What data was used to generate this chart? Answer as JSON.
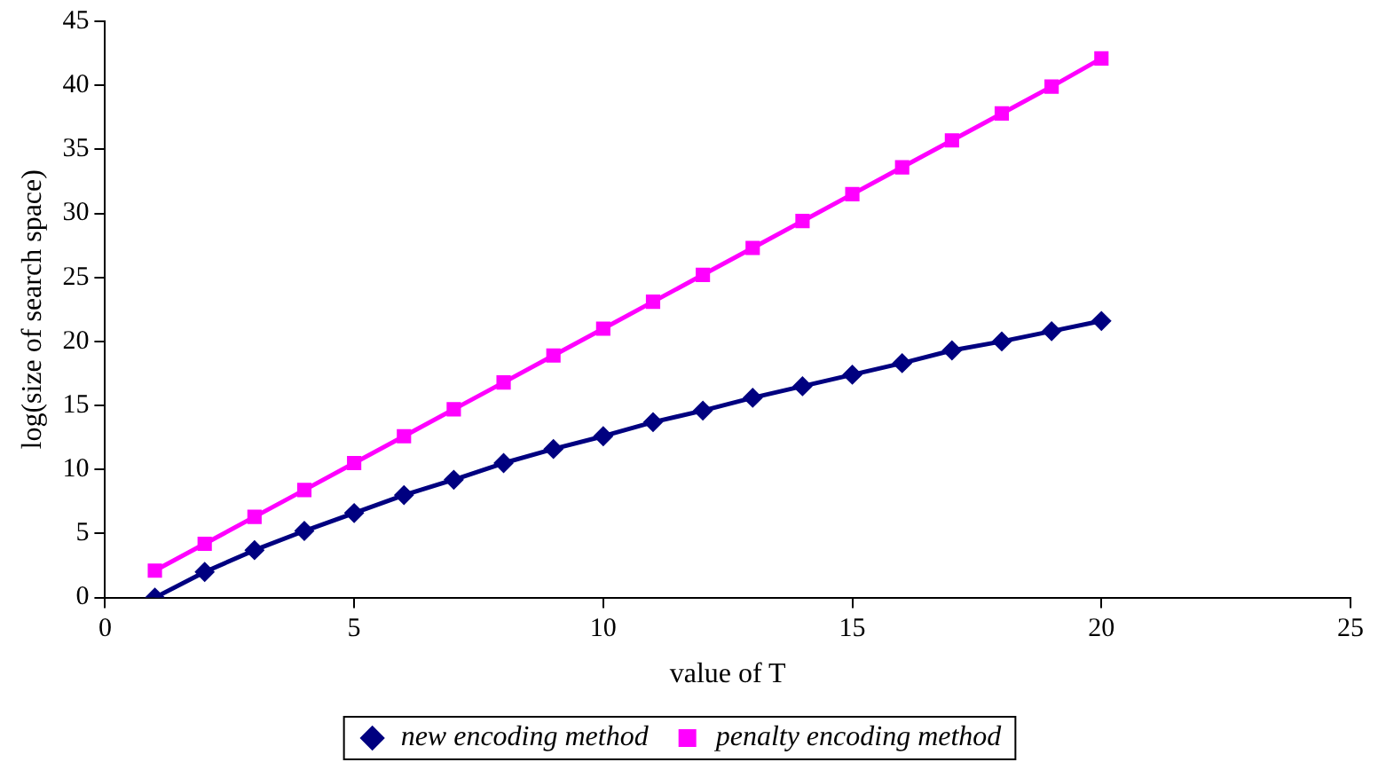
{
  "chart_data": {
    "type": "line",
    "xlabel": "value of T",
    "ylabel": "log(size of search space)",
    "x": [
      1,
      2,
      3,
      4,
      5,
      6,
      7,
      8,
      9,
      10,
      11,
      12,
      13,
      14,
      15,
      16,
      17,
      18,
      19,
      20
    ],
    "series": [
      {
        "name": "new encoding method",
        "color": "#000080",
        "marker": "diamond",
        "values": [
          0,
          2.0,
          3.7,
          5.2,
          6.6,
          8.0,
          9.2,
          10.5,
          11.6,
          12.6,
          13.7,
          14.6,
          15.6,
          16.5,
          17.4,
          18.3,
          19.3,
          20.0,
          20.8,
          21.6
        ]
      },
      {
        "name": "penalty encoding method",
        "color": "#ff00ff",
        "marker": "square",
        "values": [
          2.1,
          4.2,
          6.3,
          8.4,
          10.5,
          12.6,
          14.7,
          16.8,
          18.9,
          21.0,
          23.1,
          25.2,
          27.3,
          29.4,
          31.5,
          33.6,
          35.7,
          37.8,
          39.9,
          42.1
        ]
      }
    ],
    "xlim": [
      0,
      25
    ],
    "xticks": [
      0,
      5,
      10,
      15,
      20,
      25
    ],
    "ylim": [
      0,
      45
    ],
    "yticks": [
      0,
      5,
      10,
      15,
      20,
      25,
      30,
      35,
      40,
      45
    ],
    "grid": false,
    "legend": "bottom",
    "line_style": "solid"
  }
}
